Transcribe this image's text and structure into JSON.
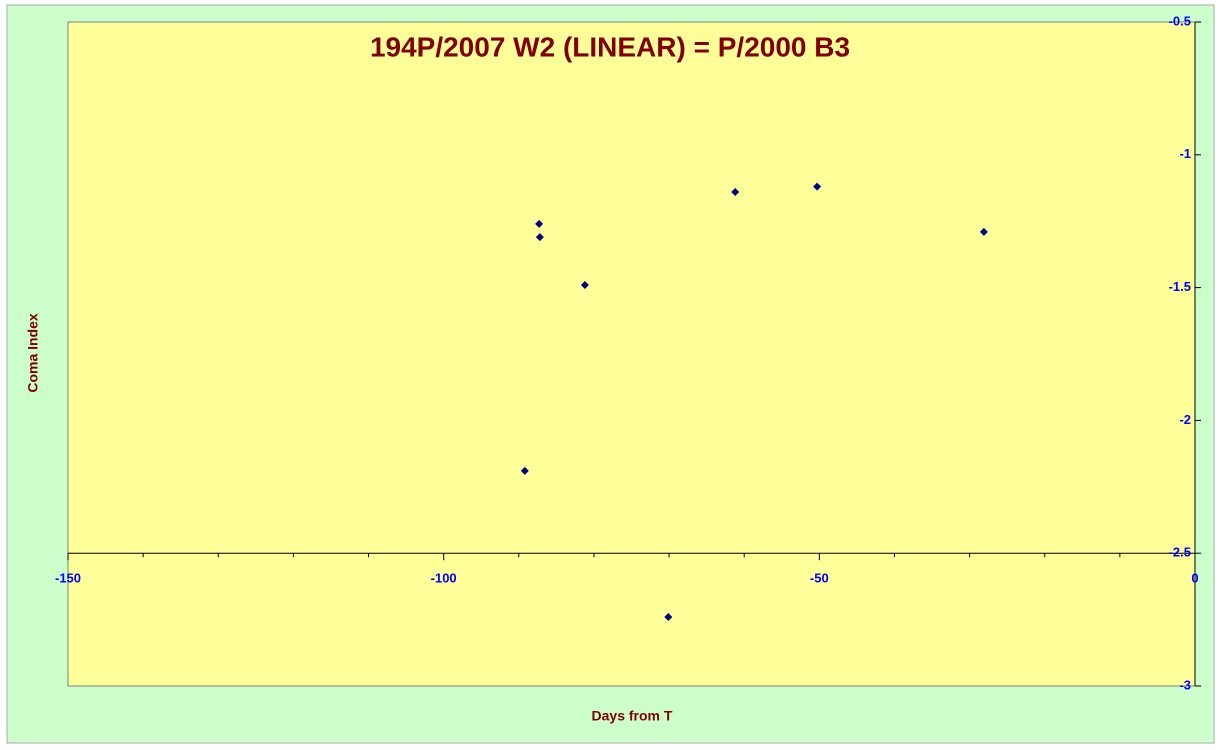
{
  "chart_data": {
    "type": "scatter",
    "title": "194P/2007 W2 (LINEAR) = P/2000 B3",
    "x_label": "Days from T",
    "y_label": "Coma Index",
    "series": [
      {
        "name": "Coma Index",
        "color": "#000080",
        "x": [
          -89.2,
          -87.3,
          -87.2,
          -81.2,
          -70.1,
          -61.2,
          -50.3,
          -28.1
        ],
        "values": [
          -2.19,
          -1.26,
          -1.31,
          -1.49,
          -2.74,
          -1.14,
          -1.12,
          -1.29
        ]
      }
    ],
    "xlim": [
      -150,
      0
    ],
    "xticks": [
      -150,
      -100,
      -50,
      0
    ],
    "x_minor_ticks": [
      -140,
      -130,
      -120,
      -110,
      -90,
      -80,
      -70,
      -60,
      -40,
      -30,
      -20,
      -10
    ],
    "ylim": [
      -3,
      -0.5
    ],
    "yticks": [
      -3,
      -2.5,
      -2,
      -1.5,
      -1,
      -0.5
    ],
    "x_axis_crosses_y": -2.5,
    "grid": false
  }
}
